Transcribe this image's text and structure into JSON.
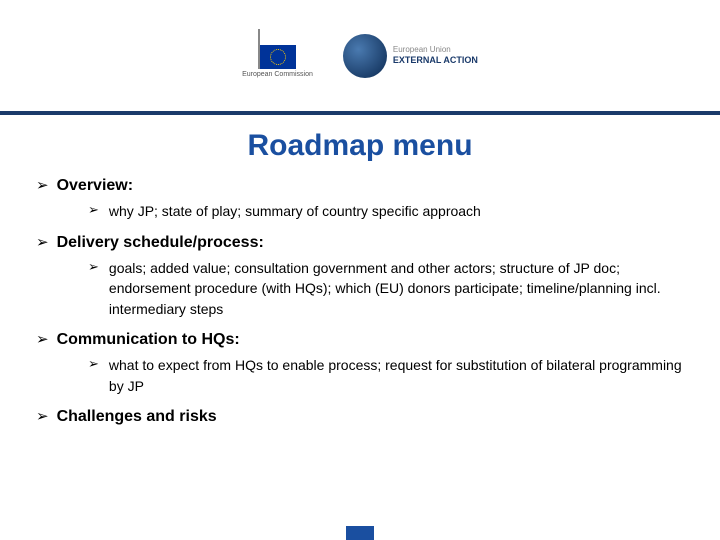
{
  "header": {
    "ec_label": "European\nCommission",
    "eeas_line1": "European Union",
    "eeas_line2": "EXTERNAL ACTION"
  },
  "title": "Roadmap menu",
  "bullet_glyph": "➢",
  "items": [
    {
      "heading": "Overview:",
      "sub": "why JP; state of play; summary of country specific approach"
    },
    {
      "heading": "Delivery schedule/process:",
      "sub": "goals; added value; consultation government and other actors; structure of JP doc; endorsement procedure (with HQs); which (EU) donors participate; timeline/planning incl. intermediary steps"
    },
    {
      "heading": "Communication to HQs:",
      "sub": "what to expect from HQs to enable process; request for substitution of bilateral programming by JP"
    },
    {
      "heading": "Challenges and risks",
      "sub": null
    }
  ],
  "colors": {
    "title": "#1a4fa0",
    "rule": "#1a3a6a",
    "text": "#000000",
    "background": "#ffffff"
  }
}
